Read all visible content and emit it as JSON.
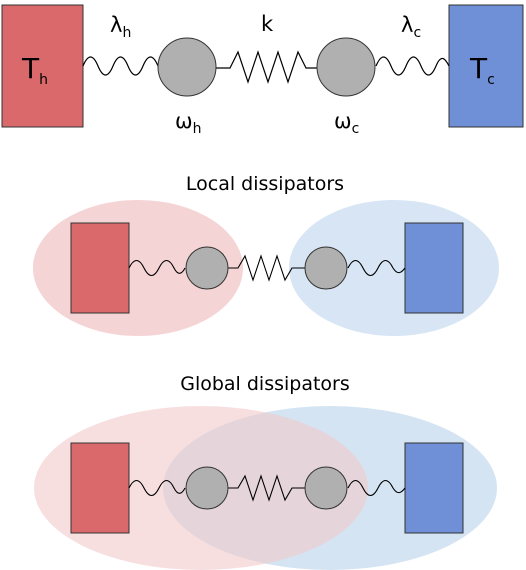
{
  "colors": {
    "hot": "#d9696b",
    "cold": "#6f8fd6",
    "hot_region": "#f2c9cb",
    "cold_region": "#cddff1",
    "oscillator": "#b0b0b0"
  },
  "top": {
    "hot_bath": {
      "symbol": "T",
      "sub": "h"
    },
    "cold_bath": {
      "symbol": "T",
      "sub": "c"
    },
    "coupling_hot": {
      "symbol": "λ",
      "sub": "h"
    },
    "coupling_cold": {
      "symbol": "λ",
      "sub": "c"
    },
    "spring": "k",
    "freq_hot": {
      "symbol": "ω",
      "sub": "h"
    },
    "freq_cold": {
      "symbol": "ω",
      "sub": "c"
    }
  },
  "local": {
    "title": "Local dissipators"
  },
  "global": {
    "title": "Global dissipators"
  }
}
